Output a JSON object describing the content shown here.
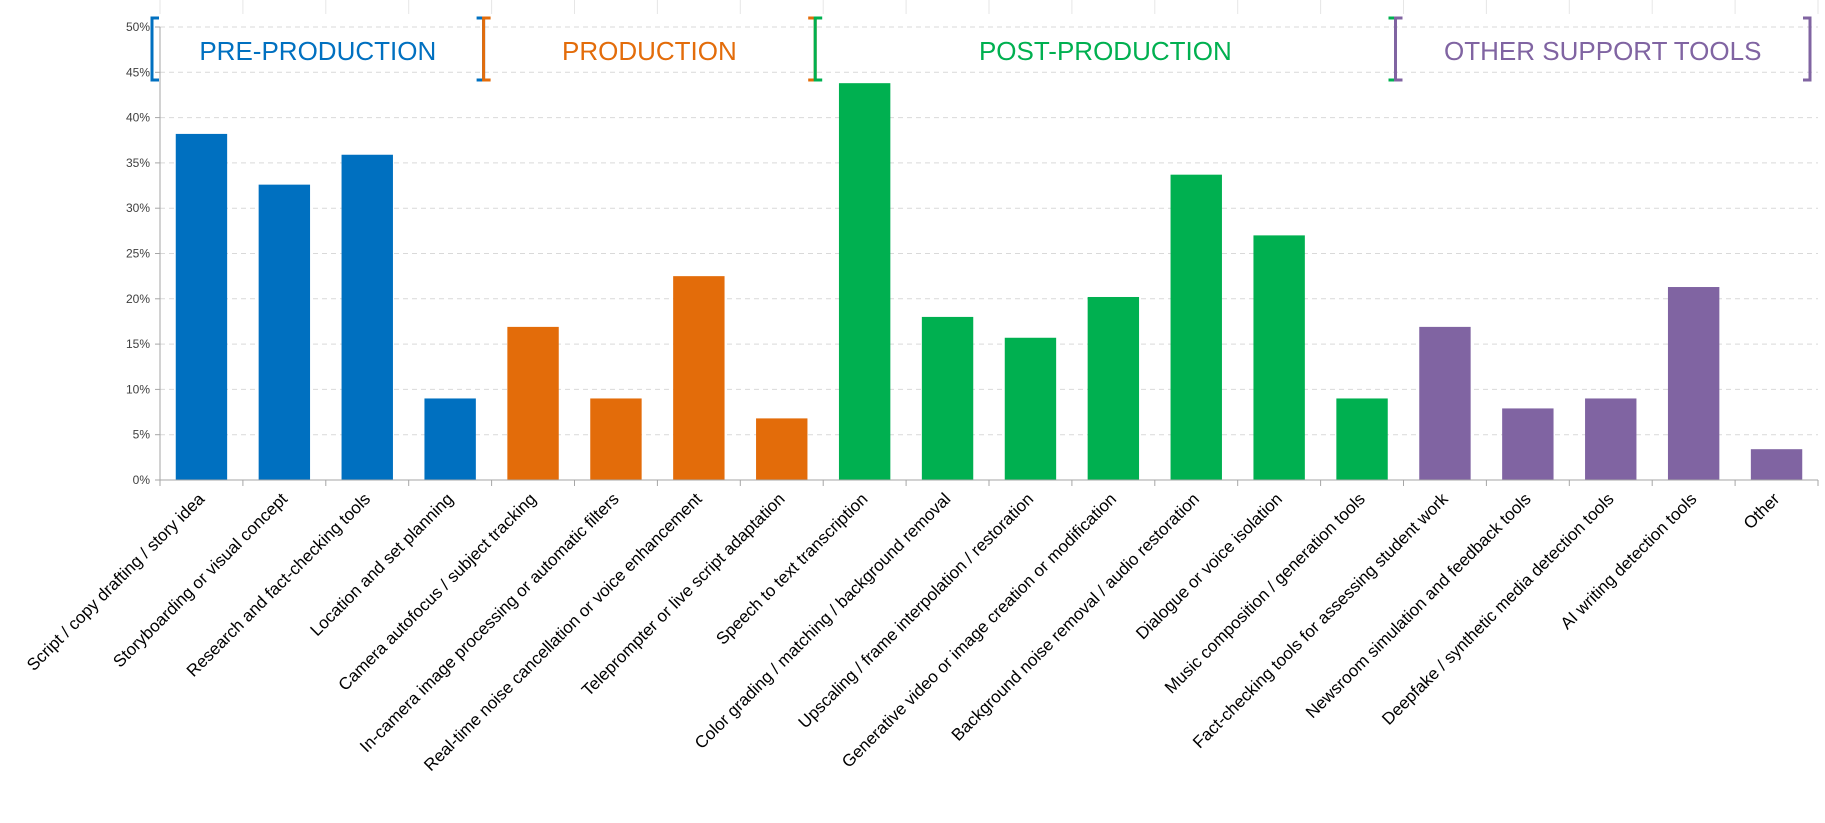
{
  "chart_data": {
    "type": "bar",
    "categories": [
      "Script / copy drafting / story idea",
      "Storyboarding or visual concept",
      "Research and fact-checking tools",
      "Location and set planning",
      "Camera autofocus / subject tracking",
      "In-camera image processing or automatic filters",
      "Real-time noise cancellation or voice enhancement",
      "Teleprompter or live script adaptation",
      "Speech to text transcription",
      "Color grading / matching / background removal",
      "Upscaling / frame interpolation / restoration",
      "Generative video or image creation or modification",
      "Background noise removal / audio restoration",
      "Dialogue or voice isolation",
      "Music composition / generation tools",
      "Fact-checking tools for assessing student work",
      "Newsroom simulation and feedback tools",
      "Deepfake / synthetic media detection tools",
      "AI writing detection tools",
      "Other"
    ],
    "values": [
      38.2,
      32.6,
      35.9,
      9.0,
      16.9,
      9.0,
      22.5,
      6.8,
      43.8,
      18.0,
      15.7,
      20.2,
      33.7,
      27.0,
      9.0,
      16.9,
      7.9,
      9.0,
      21.3,
      3.4
    ],
    "value_format": "percent",
    "ylim": [
      0,
      50
    ],
    "yticks": [
      "0%",
      "5%",
      "10%",
      "15%",
      "20%",
      "25%",
      "30%",
      "35%",
      "40%",
      "45%",
      "50%"
    ],
    "ytick_values": [
      0,
      5,
      10,
      15,
      20,
      25,
      30,
      35,
      40,
      45,
      50
    ],
    "grid": true,
    "groups": [
      {
        "label": "PRE-PRODUCTION",
        "start": 0,
        "end": 3,
        "color": "#0070C0"
      },
      {
        "label": "PRODUCTION",
        "start": 4,
        "end": 7,
        "color": "#E36C0A"
      },
      {
        "label": "POST-PRODUCTION",
        "start": 8,
        "end": 14,
        "color": "#00B050"
      },
      {
        "label": "OTHER SUPPORT TOOLS",
        "start": 15,
        "end": 19,
        "color": "#8064A2"
      }
    ]
  }
}
